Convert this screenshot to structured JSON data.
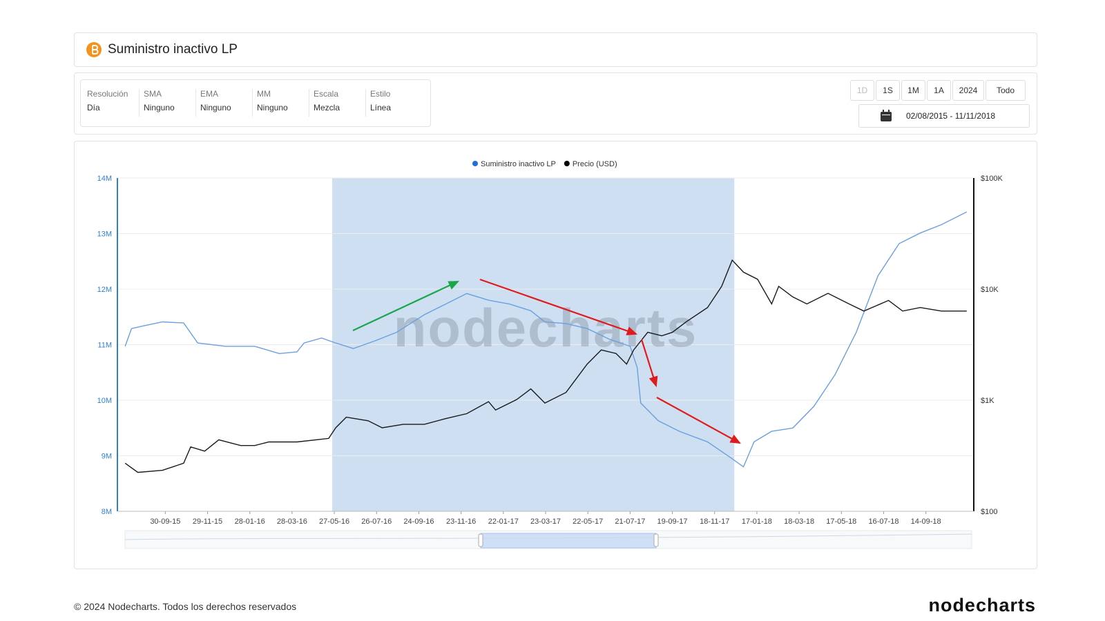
{
  "header": {
    "title": "Suministro inactivo LP"
  },
  "controls": [
    {
      "label": "Resolución",
      "value": "Día"
    },
    {
      "label": "SMA",
      "value": "Ninguno"
    },
    {
      "label": "EMA",
      "value": "Ninguno"
    },
    {
      "label": "MM",
      "value": "Ninguno"
    },
    {
      "label": "Escala",
      "value": "Mezcla"
    },
    {
      "label": "Estilo",
      "value": "Línea"
    }
  ],
  "range_buttons": [
    "1D",
    "1S",
    "1M",
    "1A",
    "2024",
    "Todo"
  ],
  "date_range": "02/08/2015 - 11/11/2018",
  "chart_data": {
    "type": "line",
    "watermark": "nodecharts",
    "xlim": [
      "24-07-15",
      "21-11-18"
    ],
    "xticks": [
      "30-09-15",
      "29-11-15",
      "28-01-16",
      "28-03-16",
      "27-05-16",
      "26-07-16",
      "24-09-16",
      "23-11-16",
      "22-01-17",
      "23-03-17",
      "22-05-17",
      "21-07-17",
      "19-09-17",
      "18-11-17",
      "17-01-18",
      "18-03-18",
      "17-05-18",
      "16-07-18",
      "14-09-18"
    ],
    "ylim": [
      8000000,
      14000000
    ],
    "yticks": [
      {
        "value": 8000000,
        "label": "8M"
      },
      {
        "value": 9000000,
        "label": "9M"
      },
      {
        "value": 10000000,
        "label": "10M"
      },
      {
        "value": 11000000,
        "label": "11M"
      },
      {
        "value": 12000000,
        "label": "12M"
      },
      {
        "value": 13000000,
        "label": "13M"
      },
      {
        "value": 14000000,
        "label": "14M"
      }
    ],
    "y2lim": [
      100,
      100000
    ],
    "y2log": true,
    "y2ticks": [
      {
        "value": 100,
        "label": "$100"
      },
      {
        "value": 1000,
        "label": "$1K"
      },
      {
        "value": 10000,
        "label": "$10K"
      },
      {
        "value": 100000,
        "label": "$100K"
      }
    ],
    "grid": true,
    "shaded_range": [
      "24-05-16",
      "16-12-17"
    ],
    "series": [
      {
        "name": "Suministro inactivo LP",
        "color": "#6a9fe0",
        "x": [
          "04-08-15",
          "13-08-15",
          "27-08-15",
          "26-09-15",
          "26-10-15",
          "15-11-15",
          "25-12-15",
          "04-02-16",
          "10-03-16",
          "04-04-16",
          "14-04-16",
          "09-05-16",
          "29-05-16",
          "23-06-16",
          "24-07-16",
          "23-08-16",
          "02-10-16",
          "01-11-16",
          "01-12-16",
          "01-01-17",
          "31-01-17",
          "02-03-17",
          "22-03-17",
          "21-04-17",
          "21-05-17",
          "21-06-17",
          "21-07-17",
          "31-07-17",
          "05-08-17",
          "30-08-17",
          "29-09-17",
          "08-11-17",
          "08-12-17",
          "29-12-17",
          "13-01-18",
          "07-02-18",
          "09-03-18",
          "08-04-18",
          "08-05-18",
          "07-06-18",
          "08-07-18",
          "07-08-18",
          "06-09-18",
          "06-10-18",
          "11-11-18"
        ],
        "values": [
          10970000,
          11290000,
          11330000,
          11410000,
          11390000,
          11030000,
          10970000,
          10970000,
          10840000,
          10870000,
          11030000,
          11120000,
          11030000,
          10930000,
          11070000,
          11220000,
          11540000,
          11730000,
          11920000,
          11800000,
          11730000,
          11610000,
          11410000,
          11380000,
          11290000,
          11100000,
          10970000,
          10590000,
          9950000,
          9630000,
          9440000,
          9250000,
          8990000,
          8800000,
          9250000,
          9440000,
          9500000,
          9890000,
          10460000,
          11220000,
          12240000,
          12820000,
          13010000,
          13160000,
          13390000
        ]
      },
      {
        "name": "Precio (USD)",
        "color": "#1a1a1a",
        "axis": "y2",
        "x": [
          "04-08-15",
          "22-08-15",
          "26-09-15",
          "26-10-15",
          "05-11-15",
          "25-11-15",
          "15-12-15",
          "15-01-16",
          "04-02-16",
          "24-02-16",
          "04-04-16",
          "19-05-16",
          "29-05-16",
          "13-06-16",
          "14-07-16",
          "03-08-16",
          "02-09-16",
          "02-10-16",
          "01-11-16",
          "01-12-16",
          "01-01-17",
          "11-01-17",
          "10-02-17",
          "02-03-17",
          "22-03-17",
          "21-04-17",
          "21-05-17",
          "10-06-17",
          "01-07-17",
          "16-07-17",
          "26-07-17",
          "15-08-17",
          "04-09-17",
          "19-09-17",
          "09-10-17",
          "08-11-17",
          "28-11-17",
          "13-12-17",
          "29-12-17",
          "18-01-18",
          "07-02-18",
          "17-02-18",
          "09-03-18",
          "29-03-18",
          "28-04-18",
          "28-05-18",
          "18-06-18",
          "23-07-18",
          "12-08-18",
          "06-09-18",
          "06-10-18",
          "11-11-18"
        ],
        "values": [
          271,
          224,
          234,
          271,
          380,
          348,
          440,
          391,
          391,
          421,
          421,
          453,
          564,
          703,
          653,
          564,
          607,
          607,
          683,
          757,
          970,
          815,
          1015,
          1265,
          943,
          1175,
          2113,
          2832,
          2633,
          2113,
          2832,
          4086,
          3800,
          4086,
          5093,
          6826,
          10590,
          18240,
          14220,
          12270,
          7350,
          10590,
          8511,
          7350,
          9160,
          7350,
          6350,
          7910,
          6350,
          6826,
          6350,
          6350
        ]
      }
    ]
  },
  "footer": {
    "copyright": "© 2024 Nodecharts. Todos los derechos reservados",
    "logo": "nodecharts"
  }
}
